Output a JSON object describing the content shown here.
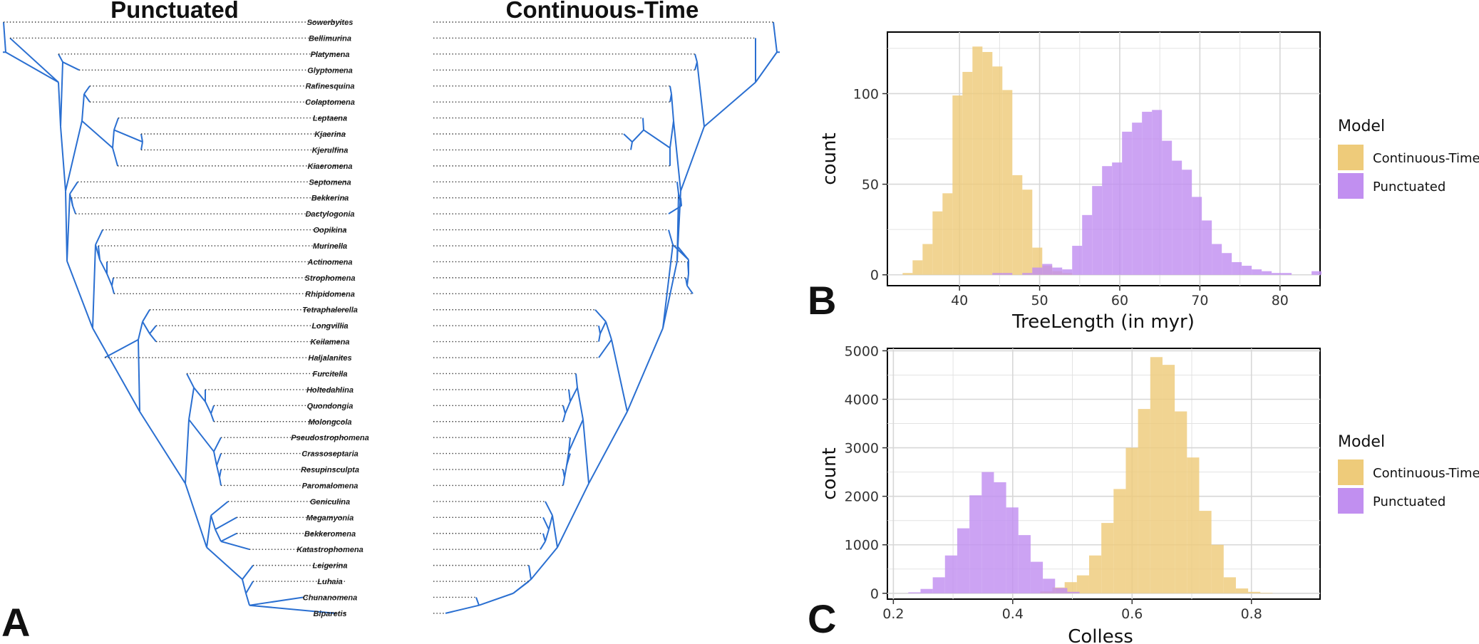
{
  "panel_labels": {
    "a": "A",
    "b": "B",
    "c": "C"
  },
  "trees": {
    "left_title": "Punctuated",
    "right_title": "Continuous-Time",
    "branch_color": "#2a6fd1",
    "taxa": [
      "Sowerbyites",
      "Bellimurina",
      "Platymena",
      "Glyptomena",
      "Rafinesquina",
      "Colaptomena",
      "Leptaena",
      "Kjaerina",
      "Kjerulfina",
      "Kiaeromena",
      "Septomena",
      "Bekkerina",
      "Dactylogonia",
      "Oopikina",
      "Murinella",
      "Actinomena",
      "Strophomena",
      "Rhipidomena",
      "Tetraphalerella",
      "Longvillia",
      "Keilamena",
      "Haljalanites",
      "Furcitella",
      "Holtedahlina",
      "Quondongia",
      "Molongcola",
      "Pseudostrophomena",
      "Crassoseptaria",
      "Resupinsculpta",
      "Paromalomena",
      "Geniculina",
      "Megamyonia",
      "Bekkeromena",
      "Katastrophomena",
      "Leigerina",
      "Luhaia",
      "Chunanomena",
      "Biparetis"
    ]
  },
  "chart_data": [
    {
      "panel": "B",
      "type": "histogram",
      "xlabel": "TreeLength (in myr)",
      "ylabel": "count",
      "xlim": [
        31,
        85
      ],
      "ylim": [
        -6,
        134
      ],
      "xticks": [
        40,
        50,
        60,
        70,
        80
      ],
      "yticks": [
        0,
        50,
        100
      ],
      "bin_width": 1.245,
      "legend_title": "Model",
      "legend_position": "right",
      "series": [
        {
          "name": "Continuous-Time",
          "color": "#eecb7a",
          "start": 32.9,
          "values": [
            1,
            8,
            17,
            35,
            45,
            99,
            112,
            126,
            123,
            115,
            102,
            55,
            47,
            15,
            5,
            2,
            1
          ]
        },
        {
          "name": "Punctuated",
          "color": "#c18ff0",
          "start": 44.1,
          "values": [
            1,
            1,
            0,
            1,
            4,
            6,
            4,
            3,
            16,
            33,
            49,
            60,
            62,
            79,
            84,
            90,
            91,
            74,
            63,
            58,
            43,
            30,
            17,
            12,
            7,
            5,
            3,
            2,
            1,
            1,
            0,
            0,
            2
          ]
        }
      ]
    },
    {
      "panel": "C",
      "type": "histogram",
      "xlabel": "Colless",
      "ylabel": "count",
      "xlim": [
        0.19,
        0.915
      ],
      "ylim": [
        -120,
        5050
      ],
      "xticks": [
        0.2,
        0.4,
        0.6,
        0.8
      ],
      "xtick_labels": [
        "0.2",
        "0.4",
        "0.6",
        "0.8"
      ],
      "yticks": [
        0,
        1000,
        2000,
        3000,
        4000,
        5000
      ],
      "bin_width": 0.0205,
      "legend_title": "Model",
      "legend_position": "right",
      "series": [
        {
          "name": "Continuous-Time",
          "color": "#eecb7a",
          "start": 0.446,
          "values": [
            40,
            120,
            230,
            370,
            780,
            1450,
            2150,
            3000,
            3800,
            4870,
            4710,
            3750,
            2800,
            1700,
            1000,
            330,
            100,
            30,
            10
          ]
        },
        {
          "name": "Punctuated",
          "color": "#c18ff0",
          "start": 0.225,
          "values": [
            20,
            90,
            330,
            780,
            1340,
            2020,
            2500,
            2290,
            1770,
            1200,
            650,
            300,
            110,
            30
          ]
        }
      ]
    }
  ]
}
